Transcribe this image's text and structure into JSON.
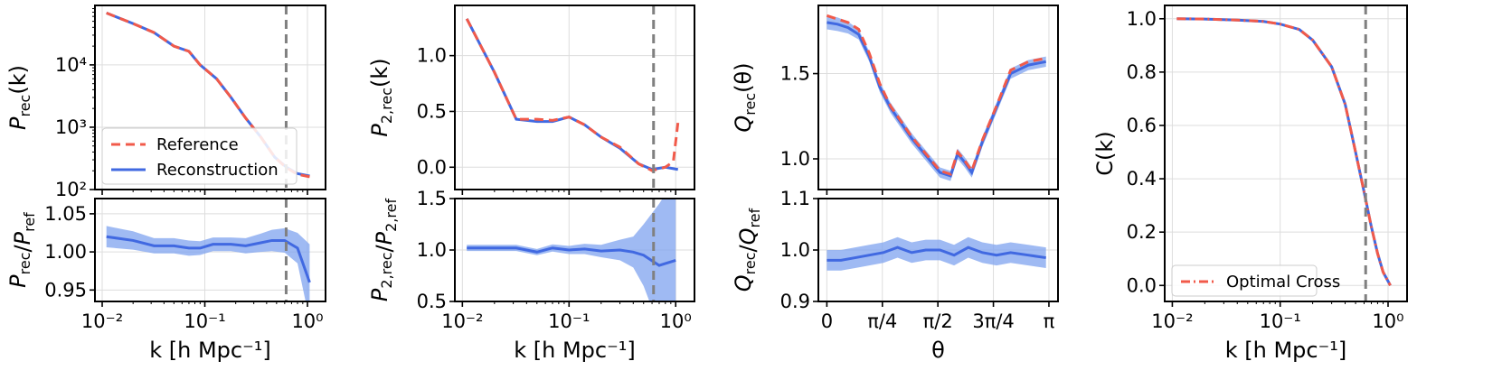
{
  "colors": {
    "reference": "#f15a4a",
    "reconstruction": "#4169e1",
    "band": "#7fa3ef",
    "grid": "#dddddd",
    "knl": "#808080",
    "cross": "#f15a4a"
  },
  "chart_data": [
    {
      "id": "p1_top",
      "type": "line",
      "xscale": "log",
      "yscale": "log",
      "xlim": [
        0.0085,
        1.5
      ],
      "ylim": [
        100,
        90000
      ],
      "yticks": [
        {
          "v": 100,
          "t": "10²"
        },
        {
          "v": 1000,
          "t": "10³"
        },
        {
          "v": 10000,
          "t": "10⁴"
        }
      ],
      "xticks": [],
      "ylabel": "P_rec(k)",
      "xlabel": "",
      "vline": 0.62,
      "legend": {
        "position": "lower-left",
        "entries": [
          {
            "label": "Reference",
            "style": "dashed"
          },
          {
            "label": "Reconstruction",
            "style": "solid"
          }
        ]
      },
      "series": [
        {
          "name": "Reconstruction",
          "style": "solid",
          "x": [
            0.011,
            0.02,
            0.032,
            0.05,
            0.07,
            0.09,
            0.13,
            0.18,
            0.25,
            0.35,
            0.48,
            0.62,
            0.8,
            1.05
          ],
          "y": [
            68000,
            46000,
            33000,
            20000,
            16500,
            10000,
            6000,
            3000,
            1400,
            700,
            330,
            230,
            180,
            165
          ]
        },
        {
          "name": "Reference",
          "style": "dashed",
          "x": [
            0.011,
            0.02,
            0.032,
            0.05,
            0.07,
            0.09,
            0.13,
            0.18,
            0.25,
            0.35,
            0.48,
            0.62,
            0.8,
            1.05
          ],
          "y": [
            68000,
            46000,
            33000,
            20000,
            16500,
            10000,
            6000,
            3000,
            1400,
            700,
            330,
            225,
            175,
            160
          ]
        }
      ]
    },
    {
      "id": "p1_bot",
      "type": "line",
      "xscale": "log",
      "yscale": "linear",
      "xlim": [
        0.0085,
        1.5
      ],
      "ylim": [
        0.935,
        1.07
      ],
      "yticks": [
        {
          "v": 0.95,
          "t": "0.95"
        },
        {
          "v": 1.0,
          "t": "1.00"
        },
        {
          "v": 1.05,
          "t": "1.05"
        }
      ],
      "xticks": [
        {
          "v": 0.01,
          "t": "10⁻²"
        },
        {
          "v": 0.1,
          "t": "10⁻¹"
        },
        {
          "v": 1,
          "t": "10⁰"
        }
      ],
      "ylabel": "P_rec/P_ref",
      "xlabel": "k [h Mpc⁻¹]",
      "vline": 0.62,
      "series": [
        {
          "name": "Ratio",
          "style": "solid",
          "band": [
            0.014,
            0.012,
            0.01,
            0.01,
            0.01,
            0.009,
            0.009,
            0.009,
            0.01,
            0.012,
            0.014,
            0.016,
            0.02,
            0.05
          ],
          "x": [
            0.011,
            0.02,
            0.032,
            0.05,
            0.07,
            0.09,
            0.12,
            0.18,
            0.25,
            0.35,
            0.45,
            0.6,
            0.8,
            1.05
          ],
          "y": [
            1.02,
            1.015,
            1.008,
            1.008,
            1.005,
            1.005,
            1.01,
            1.01,
            1.008,
            1.012,
            1.015,
            1.015,
            1.005,
            0.96
          ]
        }
      ]
    },
    {
      "id": "p2_top",
      "type": "line",
      "xscale": "log",
      "yscale": "linear",
      "xlim": [
        0.0085,
        1.5
      ],
      "ylim": [
        -0.2,
        1.45
      ],
      "yticks": [
        {
          "v": 0.0,
          "t": "0.0"
        },
        {
          "v": 0.5,
          "t": "0.5"
        },
        {
          "v": 1.0,
          "t": "1.0"
        }
      ],
      "xticks": [],
      "ylabel": "P_2,rec(k)",
      "xlabel": "",
      "vline": 0.62,
      "series": [
        {
          "name": "Reconstruction",
          "style": "solid",
          "x": [
            0.011,
            0.02,
            0.032,
            0.05,
            0.07,
            0.1,
            0.14,
            0.2,
            0.3,
            0.45,
            0.6,
            0.8,
            1.05
          ],
          "y": [
            1.33,
            0.85,
            0.43,
            0.41,
            0.41,
            0.45,
            0.38,
            0.27,
            0.17,
            0.03,
            -0.02,
            0.0,
            -0.02
          ]
        },
        {
          "name": "Reference",
          "style": "dashed",
          "x": [
            0.011,
            0.02,
            0.032,
            0.05,
            0.07,
            0.1,
            0.14,
            0.2,
            0.3,
            0.45,
            0.6,
            0.8,
            0.95,
            1.05
          ],
          "y": [
            1.33,
            0.85,
            0.43,
            0.43,
            0.42,
            0.45,
            0.38,
            0.27,
            0.18,
            0.03,
            -0.03,
            0.0,
            0.05,
            0.4
          ]
        }
      ]
    },
    {
      "id": "p2_bot",
      "type": "line",
      "xscale": "log",
      "yscale": "linear",
      "xlim": [
        0.0085,
        1.5
      ],
      "ylim": [
        0.5,
        1.5
      ],
      "yticks": [
        {
          "v": 0.5,
          "t": "0.5"
        },
        {
          "v": 1.0,
          "t": "1.0"
        },
        {
          "v": 1.5,
          "t": "1.5"
        }
      ],
      "xticks": [
        {
          "v": 0.01,
          "t": "10⁻²"
        },
        {
          "v": 0.1,
          "t": "10⁻¹"
        },
        {
          "v": 1,
          "t": "10⁰"
        }
      ],
      "ylabel": "P_2,rec/P_2,ref",
      "xlabel": "k [h Mpc⁻¹]",
      "vline": 0.62,
      "series": [
        {
          "name": "Ratio",
          "style": "solid",
          "band": [
            0.03,
            0.03,
            0.03,
            0.03,
            0.035,
            0.04,
            0.05,
            0.06,
            0.1,
            0.15,
            0.3,
            0.6,
            0.8
          ],
          "x": [
            0.011,
            0.02,
            0.032,
            0.05,
            0.07,
            0.1,
            0.14,
            0.2,
            0.3,
            0.4,
            0.5,
            0.7,
            1.0
          ],
          "y": [
            1.02,
            1.02,
            1.02,
            0.98,
            1.02,
            1.0,
            1.01,
            0.99,
            1.0,
            0.98,
            0.95,
            0.85,
            0.9
          ]
        }
      ]
    },
    {
      "id": "p3_top",
      "type": "line",
      "xscale": "linear",
      "yscale": "linear",
      "xlim": [
        -0.12,
        3.27
      ],
      "ylim": [
        0.82,
        1.9
      ],
      "yticks": [
        {
          "v": 1.0,
          "t": "1.0"
        },
        {
          "v": 1.5,
          "t": "1.5"
        }
      ],
      "xticks": [],
      "ylabel": "Q_rec(θ)",
      "xlabel": "",
      "series": [
        {
          "name": "Reconstruction",
          "style": "solid",
          "band": [
            0.04,
            0.04,
            0.035,
            0.03,
            0.03,
            0.03,
            0.03,
            0.03,
            0.03,
            0.03,
            0.03,
            0.03,
            0.03,
            0.03,
            0.03,
            0.03,
            0.03,
            0.03,
            0.03,
            0.03
          ],
          "x": [
            0.0,
            0.15,
            0.3,
            0.45,
            0.6,
            0.75,
            0.9,
            1.05,
            1.2,
            1.4,
            1.6,
            1.75,
            1.85,
            1.95,
            2.05,
            2.2,
            2.4,
            2.6,
            2.85,
            3.1
          ],
          "y": [
            1.8,
            1.79,
            1.77,
            1.73,
            1.6,
            1.42,
            1.3,
            1.21,
            1.12,
            1.02,
            0.92,
            0.9,
            1.03,
            0.98,
            0.92,
            1.1,
            1.3,
            1.5,
            1.55,
            1.57
          ]
        },
        {
          "name": "Reference",
          "style": "dashed",
          "x": [
            0.0,
            0.15,
            0.3,
            0.45,
            0.6,
            0.75,
            0.9,
            1.05,
            1.2,
            1.4,
            1.6,
            1.75,
            1.85,
            1.95,
            2.05,
            2.2,
            2.4,
            2.6,
            2.85,
            3.1
          ],
          "y": [
            1.84,
            1.82,
            1.8,
            1.76,
            1.62,
            1.44,
            1.31,
            1.22,
            1.13,
            1.03,
            0.93,
            0.91,
            1.04,
            0.99,
            0.93,
            1.11,
            1.31,
            1.52,
            1.57,
            1.59
          ]
        }
      ]
    },
    {
      "id": "p3_bot",
      "type": "line",
      "xscale": "linear",
      "yscale": "linear",
      "xlim": [
        -0.12,
        3.27
      ],
      "ylim": [
        0.9,
        1.1
      ],
      "yticks": [
        {
          "v": 0.9,
          "t": "0.9"
        },
        {
          "v": 1.0,
          "t": "1.0"
        },
        {
          "v": 1.1,
          "t": "1.1"
        }
      ],
      "xticks": [
        {
          "v": 0.0,
          "t": "0"
        },
        {
          "v": 0.7854,
          "t": "π/4"
        },
        {
          "v": 1.5708,
          "t": "π/2"
        },
        {
          "v": 2.3562,
          "t": "3π/4"
        },
        {
          "v": 3.1416,
          "t": "π"
        }
      ],
      "ylabel": "Q_rec/Q_ref",
      "xlabel": "θ",
      "series": [
        {
          "name": "Ratio",
          "style": "solid",
          "band": [
            0.02,
            0.02,
            0.02,
            0.02,
            0.02,
            0.02,
            0.02,
            0.02,
            0.02,
            0.02,
            0.02,
            0.02,
            0.02,
            0.02,
            0.02,
            0.02
          ],
          "x": [
            0.0,
            0.2,
            0.4,
            0.6,
            0.8,
            1.0,
            1.2,
            1.4,
            1.6,
            1.8,
            2.0,
            2.2,
            2.4,
            2.6,
            2.85,
            3.1
          ],
          "y": [
            0.98,
            0.98,
            0.985,
            0.99,
            0.995,
            1.005,
            0.995,
            1.0,
            1.0,
            0.99,
            1.005,
            0.995,
            0.99,
            0.995,
            0.99,
            0.985
          ]
        }
      ]
    },
    {
      "id": "p4",
      "type": "line",
      "xscale": "log",
      "yscale": "linear",
      "xlim": [
        0.0085,
        1.5
      ],
      "ylim": [
        -0.06,
        1.05
      ],
      "yticks": [
        {
          "v": 0.0,
          "t": "0.0"
        },
        {
          "v": 0.2,
          "t": "0.2"
        },
        {
          "v": 0.4,
          "t": "0.4"
        },
        {
          "v": 0.6,
          "t": "0.6"
        },
        {
          "v": 0.8,
          "t": "0.8"
        },
        {
          "v": 1.0,
          "t": "1.0"
        }
      ],
      "xticks": [
        {
          "v": 0.01,
          "t": "10⁻²"
        },
        {
          "v": 0.1,
          "t": "10⁻¹"
        },
        {
          "v": 1,
          "t": "10⁰"
        }
      ],
      "ylabel": "C(k)",
      "xlabel": "k [h Mpc⁻¹]",
      "vline": 0.62,
      "legend": {
        "position": "lower-left",
        "entries": [
          {
            "label": "Optimal Cross",
            "style": "dashdot"
          }
        ]
      },
      "series": [
        {
          "name": "Optimal Cross",
          "style": "solid_blue_under",
          "x": [
            0.011,
            0.02,
            0.04,
            0.07,
            0.1,
            0.15,
            0.2,
            0.3,
            0.4,
            0.5,
            0.6,
            0.7,
            0.8,
            0.9,
            1.05
          ],
          "y": [
            1.0,
            0.999,
            0.995,
            0.99,
            0.98,
            0.96,
            0.92,
            0.82,
            0.68,
            0.5,
            0.35,
            0.22,
            0.12,
            0.05,
            0.0
          ]
        }
      ]
    }
  ]
}
